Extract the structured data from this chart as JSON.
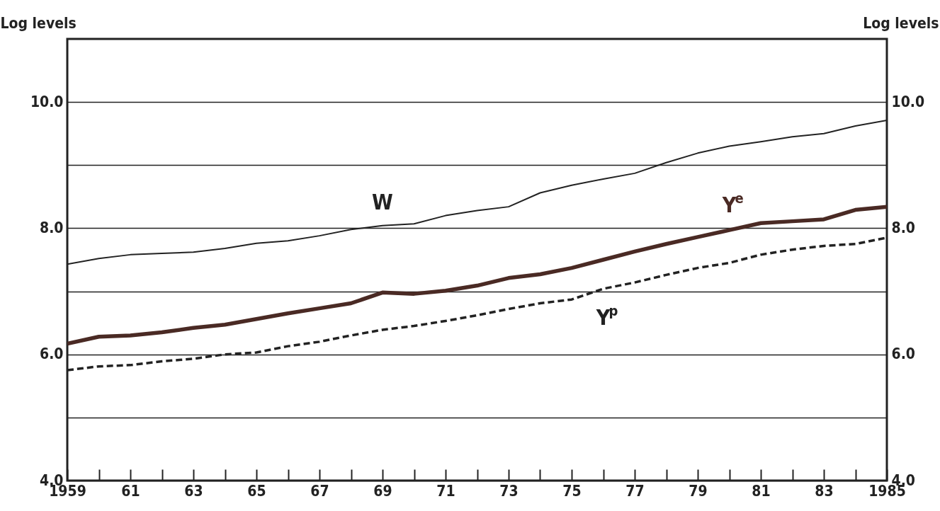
{
  "chart_data": {
    "type": "line",
    "ylabel": "Log levels",
    "y2label": "Log levels",
    "x": [
      1959,
      1960,
      1961,
      1962,
      1963,
      1964,
      1965,
      1966,
      1967,
      1968,
      1969,
      1970,
      1971,
      1972,
      1973,
      1974,
      1975,
      1976,
      1977,
      1978,
      1979,
      1980,
      1981,
      1982,
      1983,
      1984,
      1985
    ],
    "series": [
      {
        "name": "W",
        "color": "#222222",
        "line_style": "solid",
        "values": [
          7.43,
          7.52,
          7.58,
          7.6,
          7.62,
          7.68,
          7.76,
          7.8,
          7.88,
          7.98,
          8.04,
          8.07,
          8.2,
          8.28,
          8.34,
          8.56,
          8.68,
          8.78,
          8.87,
          9.04,
          9.19,
          9.3,
          9.37,
          9.45,
          9.5,
          9.62,
          9.71
        ]
      },
      {
        "name": "Y$^{e}$",
        "color": "#4a2a24",
        "line_style": "solid",
        "values": [
          6.17,
          6.28,
          6.3,
          6.35,
          6.42,
          6.47,
          6.56,
          6.65,
          6.73,
          6.81,
          6.98,
          6.96,
          7.01,
          7.09,
          7.21,
          7.27,
          7.37,
          7.5,
          7.63,
          7.75,
          7.86,
          7.97,
          8.08,
          8.11,
          8.14,
          8.29,
          8.34
        ]
      },
      {
        "name": "Y$^{p}$",
        "color": "#222222",
        "line_style": "dashed",
        "values": [
          5.75,
          5.81,
          5.83,
          5.89,
          5.93,
          6.0,
          6.03,
          6.13,
          6.2,
          6.3,
          6.39,
          6.45,
          6.53,
          6.62,
          6.72,
          6.81,
          6.87,
          7.04,
          7.14,
          7.26,
          7.37,
          7.45,
          7.58,
          7.66,
          7.72,
          7.75,
          7.85
        ]
      }
    ],
    "xlim": [
      1959,
      1985
    ],
    "xticks": [
      {
        "value": 1959,
        "label": "1959"
      },
      {
        "value": 1960,
        "label": null
      },
      {
        "value": 1961,
        "label": "61"
      },
      {
        "value": 1962,
        "label": null
      },
      {
        "value": 1963,
        "label": "63"
      },
      {
        "value": 1964,
        "label": null
      },
      {
        "value": 1965,
        "label": "65"
      },
      {
        "value": 1966,
        "label": null
      },
      {
        "value": 1967,
        "label": "67"
      },
      {
        "value": 1968,
        "label": null
      },
      {
        "value": 1969,
        "label": "69"
      },
      {
        "value": 1970,
        "label": null
      },
      {
        "value": 1971,
        "label": "71"
      },
      {
        "value": 1972,
        "label": null
      },
      {
        "value": 1973,
        "label": "73"
      },
      {
        "value": 1974,
        "label": null
      },
      {
        "value": 1975,
        "label": "75"
      },
      {
        "value": 1976,
        "label": null
      },
      {
        "value": 1977,
        "label": "77"
      },
      {
        "value": 1978,
        "label": null
      },
      {
        "value": 1979,
        "label": "79"
      },
      {
        "value": 1980,
        "label": null
      },
      {
        "value": 1981,
        "label": "81"
      },
      {
        "value": 1982,
        "label": null
      },
      {
        "value": 1983,
        "label": "83"
      },
      {
        "value": 1984,
        "label": null
      },
      {
        "value": 1985,
        "label": "1985"
      }
    ],
    "ylim": [
      4,
      11
    ],
    "yticks": [
      {
        "value": 4,
        "label": "4.0"
      },
      {
        "value": 5,
        "label": null
      },
      {
        "value": 6,
        "label": "6.0"
      },
      {
        "value": 7,
        "label": null
      },
      {
        "value": 8,
        "label": "8.0"
      },
      {
        "value": 9,
        "label": null
      },
      {
        "value": 10,
        "label": "10.0"
      }
    ],
    "y2lim": [
      4,
      11
    ],
    "y2ticks": [
      {
        "value": 4,
        "label": "4.0"
      },
      {
        "value": 6,
        "label": "6.0"
      },
      {
        "value": 8,
        "label": "8.0"
      },
      {
        "value": 10,
        "label": "10.0"
      }
    ],
    "grid": "y",
    "marker": "none"
  }
}
